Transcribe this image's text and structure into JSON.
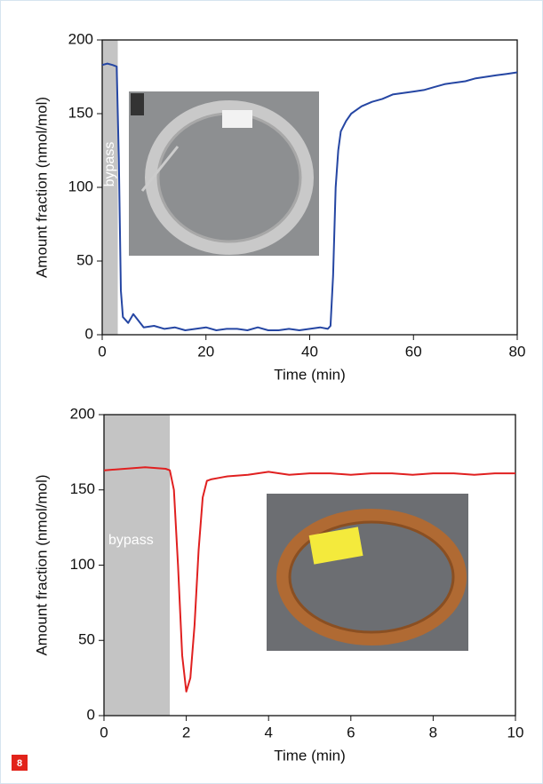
{
  "badge": "8",
  "chart_data": [
    {
      "type": "line",
      "xlabel": "Time (min)",
      "ylabel": "Amount fraction (nmol/mol)",
      "xlim": [
        0,
        80
      ],
      "ylim": [
        0,
        200
      ],
      "xticks": [
        0,
        20,
        40,
        60,
        80
      ],
      "yticks": [
        0,
        50,
        100,
        150,
        200
      ],
      "annotations": [
        {
          "text": "bypass",
          "x_start": 0,
          "x_end": 3
        }
      ],
      "x": [
        0,
        1,
        2,
        2.8,
        3.2,
        3.6,
        4,
        5,
        6,
        8,
        10,
        12,
        14,
        16,
        18,
        20,
        22,
        24,
        26,
        28,
        30,
        32,
        34,
        36,
        38,
        40,
        42,
        43.5,
        44,
        44.5,
        45,
        45.5,
        46,
        47,
        48,
        50,
        52,
        54,
        56,
        58,
        60,
        62,
        64,
        66,
        68,
        70,
        72,
        74,
        76,
        78,
        80
      ],
      "series": [
        {
          "color": "#2546a3",
          "values": [
            183,
            184,
            183,
            182,
            120,
            30,
            12,
            8,
            14,
            5,
            6,
            4,
            5,
            3,
            4,
            5,
            3,
            4,
            4,
            3,
            5,
            3,
            3,
            4,
            3,
            4,
            5,
            4,
            6,
            40,
            100,
            125,
            138,
            145,
            150,
            155,
            158,
            160,
            163,
            164,
            165,
            166,
            168,
            170,
            171,
            172,
            174,
            175,
            176,
            177,
            178
          ]
        }
      ]
    },
    {
      "type": "line",
      "xlabel": "Time (min)",
      "ylabel": "Amount fraction (nmol/mol)",
      "xlim": [
        0,
        10
      ],
      "ylim": [
        0,
        200
      ],
      "xticks": [
        0,
        2,
        4,
        6,
        8,
        10
      ],
      "yticks": [
        0,
        50,
        100,
        150,
        200
      ],
      "annotations": [
        {
          "text": "bypass",
          "x_start": 0,
          "x_end": 1.6
        }
      ],
      "x": [
        0,
        0.5,
        1,
        1.5,
        1.6,
        1.7,
        1.8,
        1.9,
        2,
        2.1,
        2.2,
        2.3,
        2.4,
        2.5,
        2.6,
        2.8,
        3,
        3.5,
        4,
        4.5,
        5,
        5.5,
        6,
        6.5,
        7,
        7.5,
        8,
        8.5,
        9,
        9.5,
        10
      ],
      "series": [
        {
          "color": "#e02020",
          "values": [
            163,
            164,
            165,
            164,
            163,
            150,
            100,
            40,
            16,
            25,
            60,
            110,
            145,
            156,
            157,
            158,
            159,
            160,
            162,
            160,
            161,
            161,
            160,
            161,
            161,
            160,
            161,
            161,
            160,
            161,
            161
          ]
        }
      ]
    }
  ]
}
